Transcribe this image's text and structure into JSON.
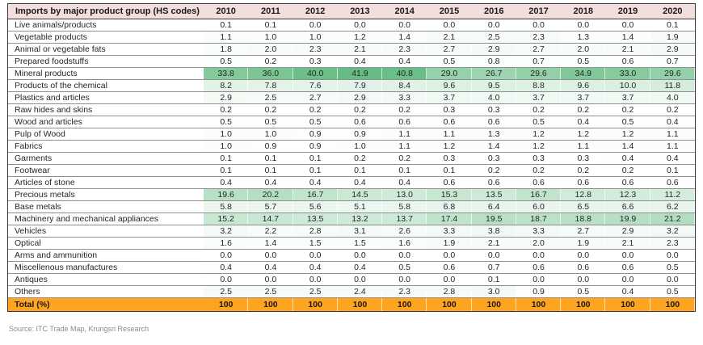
{
  "source": "Source: ITC Trade Map, Krungsri Research",
  "chart_data": {
    "type": "table",
    "title": "Imports by major product group (HS codes)",
    "columns": [
      "2010",
      "2011",
      "2012",
      "2013",
      "2014",
      "2015",
      "2016",
      "2017",
      "2018",
      "2019",
      "2020"
    ],
    "rows": [
      {
        "label": "Live animals/products",
        "values": [
          0.1,
          0.1,
          0.0,
          0.0,
          0.0,
          0.0,
          0.0,
          0.0,
          0.0,
          0.0,
          0.1
        ]
      },
      {
        "label": "Vegetable products",
        "values": [
          1.1,
          1.0,
          1.0,
          1.2,
          1.4,
          2.1,
          2.5,
          2.3,
          1.3,
          1.4,
          1.9
        ]
      },
      {
        "label": "Animal or vegetable fats",
        "values": [
          1.8,
          2.0,
          2.3,
          2.1,
          2.3,
          2.7,
          2.9,
          2.7,
          2.0,
          2.1,
          2.9
        ]
      },
      {
        "label": "Prepared foodstuffs",
        "values": [
          0.5,
          0.2,
          0.3,
          0.4,
          0.4,
          0.5,
          0.8,
          0.7,
          0.5,
          0.6,
          0.7
        ]
      },
      {
        "label": "Mineral products",
        "values": [
          33.8,
          36.0,
          40.0,
          41.9,
          40.8,
          29.0,
          26.7,
          29.6,
          34.9,
          33.0,
          29.6
        ]
      },
      {
        "label": "Products of the chemical",
        "values": [
          8.2,
          7.8,
          7.6,
          7.9,
          8.4,
          9.6,
          9.5,
          8.8,
          9.6,
          10.0,
          11.8
        ]
      },
      {
        "label": "Plastics and articles",
        "values": [
          2.9,
          2.5,
          2.7,
          2.9,
          3.3,
          3.7,
          4.0,
          3.7,
          3.7,
          3.7,
          4.0
        ]
      },
      {
        "label": "Raw hides and skins",
        "values": [
          0.2,
          0.2,
          0.2,
          0.2,
          0.2,
          0.3,
          0.3,
          0.2,
          0.2,
          0.2,
          0.2
        ]
      },
      {
        "label": "Wood and articles",
        "values": [
          0.5,
          0.5,
          0.5,
          0.6,
          0.6,
          0.6,
          0.6,
          0.5,
          0.4,
          0.5,
          0.4
        ]
      },
      {
        "label": "Pulp of Wood",
        "values": [
          1.0,
          1.0,
          0.9,
          0.9,
          1.1,
          1.1,
          1.3,
          1.2,
          1.2,
          1.2,
          1.1
        ]
      },
      {
        "label": "Fabrics",
        "values": [
          1.0,
          0.9,
          0.9,
          1.0,
          1.1,
          1.2,
          1.4,
          1.2,
          1.1,
          1.4,
          1.1
        ]
      },
      {
        "label": "Garments",
        "values": [
          0.1,
          0.1,
          0.1,
          0.2,
          0.2,
          0.3,
          0.3,
          0.3,
          0.3,
          0.4,
          0.4
        ]
      },
      {
        "label": "Footwear",
        "values": [
          0.1,
          0.1,
          0.1,
          0.1,
          0.1,
          0.1,
          0.2,
          0.2,
          0.2,
          0.2,
          0.1
        ]
      },
      {
        "label": "Articles of stone",
        "values": [
          0.4,
          0.4,
          0.4,
          0.4,
          0.4,
          0.6,
          0.6,
          0.6,
          0.6,
          0.6,
          0.6
        ]
      },
      {
        "label": "Precious metals",
        "values": [
          19.6,
          20.2,
          16.7,
          14.5,
          13.0,
          15.3,
          13.5,
          16.7,
          12.8,
          12.3,
          11.2
        ]
      },
      {
        "label": "Base metals",
        "values": [
          5.8,
          5.7,
          5.6,
          5.1,
          5.8,
          6.8,
          6.4,
          6.0,
          6.5,
          6.6,
          6.2
        ]
      },
      {
        "label": "Machinery and mechanical appliances",
        "values": [
          15.2,
          14.7,
          13.5,
          13.2,
          13.7,
          17.4,
          19.5,
          18.7,
          18.8,
          19.9,
          21.2
        ]
      },
      {
        "label": "Vehicles",
        "values": [
          3.2,
          2.2,
          2.8,
          3.1,
          2.6,
          3.3,
          3.8,
          3.3,
          2.7,
          2.9,
          3.2
        ]
      },
      {
        "label": "Optical",
        "values": [
          1.6,
          1.4,
          1.5,
          1.5,
          1.6,
          1.9,
          2.1,
          2.0,
          1.9,
          2.1,
          2.3
        ]
      },
      {
        "label": "Arms and ammunition",
        "values": [
          0.0,
          0.0,
          0.0,
          0.0,
          0.0,
          0.0,
          0.0,
          0.0,
          0.0,
          0.0,
          0.0
        ]
      },
      {
        "label": "Miscellenous manufactures",
        "values": [
          0.4,
          0.4,
          0.4,
          0.4,
          0.5,
          0.6,
          0.7,
          0.6,
          0.6,
          0.6,
          0.5
        ]
      },
      {
        "label": "Antiques",
        "values": [
          0.0,
          0.0,
          0.0,
          0.0,
          0.0,
          0.0,
          0.1,
          0.0,
          0.0,
          0.0,
          0.0
        ]
      },
      {
        "label": "Others",
        "values": [
          2.5,
          2.5,
          2.5,
          2.4,
          2.3,
          2.8,
          3.0,
          0.9,
          0.5,
          0.4,
          0.5
        ]
      }
    ],
    "total_row": {
      "label": "Total (%)",
      "values": [
        100,
        100,
        100,
        100,
        100,
        100,
        100,
        100,
        100,
        100,
        100
      ]
    },
    "heatmap": {
      "min_value": 0,
      "max_value": 41.9,
      "min_color": "#FFFFFF",
      "max_color": "#66BC84"
    },
    "colors": {
      "header_bg": "#F2DEDC",
      "header_text": "#1A1A1A",
      "total_bg": "#FFA41E",
      "total_text": "#181818",
      "border_dark": "#3A3A3A",
      "row_border": "#8F8F8F",
      "source_text": "#8A8A8A"
    }
  }
}
